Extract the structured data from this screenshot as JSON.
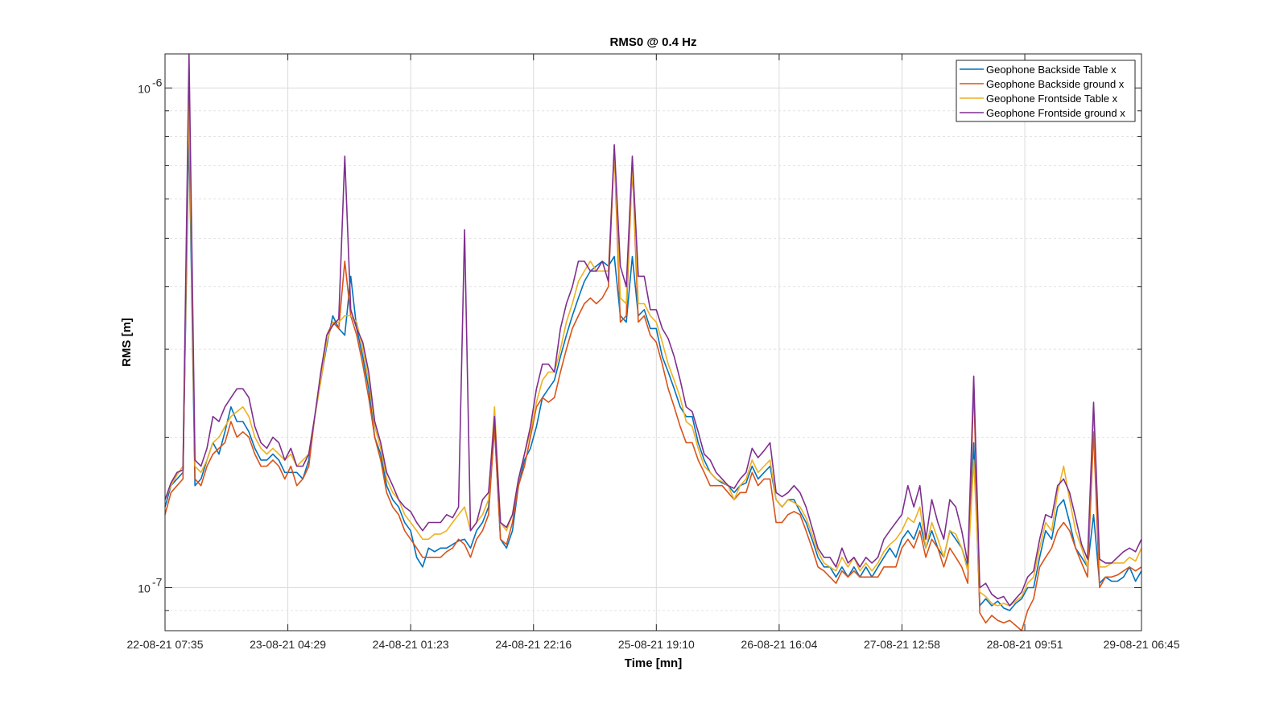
{
  "chart_data": {
    "type": "line",
    "title": "RMS0 @ 0.4 Hz",
    "xlabel": "Time [mn]",
    "ylabel": "RMS [m]",
    "yscale": "log",
    "ylim": [
      8.2e-08,
      1.17e-06
    ],
    "xlim": [
      0,
      159
    ],
    "grid": true,
    "legend_position": "top-right",
    "x_ticks": [
      {
        "x": 0,
        "label": "22-08-21 07:35"
      },
      {
        "x": 20,
        "label": "23-08-21 04:29"
      },
      {
        "x": 40,
        "label": "24-08-21 01:23"
      },
      {
        "x": 60,
        "label": "24-08-21 22:16"
      },
      {
        "x": 80,
        "label": "25-08-21 19:10"
      },
      {
        "x": 100,
        "label": "26-08-21 16:04"
      },
      {
        "x": 120,
        "label": "27-08-21 12:58"
      },
      {
        "x": 140,
        "label": "28-08-21 09:51"
      },
      {
        "x": 159,
        "label": "29-08-21 06:45"
      }
    ],
    "y_ticks": [
      {
        "y": 1e-07,
        "label": "10",
        "exp": "-7"
      },
      {
        "y": 1e-06,
        "label": "10",
        "exp": "-6"
      }
    ],
    "y_minor": [
      9e-08,
      2e-07,
      3e-07,
      4e-07,
      5e-07,
      6e-07,
      7e-07,
      8e-07,
      9e-07
    ],
    "series": [
      {
        "name": "Geophone Backside Table x",
        "color": "#0072BD",
        "values": [
          1.45e-07,
          1.6e-07,
          1.65e-07,
          1.7e-07,
          8.2e-07,
          1.6e-07,
          1.65e-07,
          1.8e-07,
          1.95e-07,
          1.85e-07,
          2.05e-07,
          2.3e-07,
          2.15e-07,
          2.15e-07,
          2.05e-07,
          1.9e-07,
          1.8e-07,
          1.8e-07,
          1.85e-07,
          1.8e-07,
          1.7e-07,
          1.7e-07,
          1.7e-07,
          1.65e-07,
          1.8e-07,
          2.2e-07,
          2.6e-07,
          3.05e-07,
          3.5e-07,
          3.3e-07,
          3.2e-07,
          4.2e-07,
          3.3e-07,
          2.9e-07,
          2.5e-07,
          2e-07,
          1.85e-07,
          1.6e-07,
          1.5e-07,
          1.45e-07,
          1.35e-07,
          1.3e-07,
          1.15e-07,
          1.1e-07,
          1.2e-07,
          1.18e-07,
          1.2e-07,
          1.2e-07,
          1.22e-07,
          1.24e-07,
          1.25e-07,
          1.2e-07,
          1.3e-07,
          1.35e-07,
          1.45e-07,
          2.1e-07,
          1.25e-07,
          1.2e-07,
          1.3e-07,
          1.6e-07,
          1.8e-07,
          1.9e-07,
          2.1e-07,
          2.4e-07,
          2.5e-07,
          2.6e-07,
          2.9e-07,
          3.2e-07,
          3.5e-07,
          3.8e-07,
          4.1e-07,
          4.3e-07,
          4.4e-07,
          4.5e-07,
          4.4e-07,
          4.6e-07,
          3.5e-07,
          3.4e-07,
          4.6e-07,
          3.5e-07,
          3.6e-07,
          3.3e-07,
          3.3e-07,
          2.9e-07,
          2.7e-07,
          2.5e-07,
          2.3e-07,
          2.2e-07,
          2.2e-07,
          1.95e-07,
          1.8e-07,
          1.7e-07,
          1.65e-07,
          1.62e-07,
          1.6e-07,
          1.55e-07,
          1.6e-07,
          1.62e-07,
          1.75e-07,
          1.65e-07,
          1.7e-07,
          1.75e-07,
          1.5e-07,
          1.45e-07,
          1.5e-07,
          1.5e-07,
          1.42e-07,
          1.35e-07,
          1.25e-07,
          1.15e-07,
          1.1e-07,
          1.1e-07,
          1.05e-07,
          1.1e-07,
          1.05e-07,
          1.1e-07,
          1.05e-07,
          1.1e-07,
          1.05e-07,
          1.1e-07,
          1.15e-07,
          1.2e-07,
          1.15e-07,
          1.25e-07,
          1.3e-07,
          1.25e-07,
          1.35e-07,
          1.2e-07,
          1.3e-07,
          1.2e-07,
          1.15e-07,
          1.3e-07,
          1.25e-07,
          1.2e-07,
          1.1e-07,
          1.95e-07,
          9.2e-08,
          9.5e-08,
          9.2e-08,
          9.4e-08,
          9.1e-08,
          9e-08,
          9.3e-08,
          9.5e-08,
          1e-07,
          1e-07,
          1.15e-07,
          1.3e-07,
          1.25e-07,
          1.45e-07,
          1.5e-07,
          1.35e-07,
          1.2e-07,
          1.15e-07,
          1.1e-07,
          1.4e-07,
          1.02e-07,
          1.05e-07,
          1.03e-07,
          1.03e-07,
          1.05e-07,
          1.1e-07,
          1.03e-07,
          1.08e-07
        ]
      },
      {
        "name": "Geophone Backside ground x",
        "color": "#D95319",
        "values": [
          1.4e-07,
          1.55e-07,
          1.6e-07,
          1.65e-07,
          9.5e-07,
          1.65e-07,
          1.6e-07,
          1.75e-07,
          1.85e-07,
          1.9e-07,
          1.95e-07,
          2.15e-07,
          2e-07,
          2.05e-07,
          2e-07,
          1.85e-07,
          1.75e-07,
          1.75e-07,
          1.8e-07,
          1.75e-07,
          1.65e-07,
          1.75e-07,
          1.6e-07,
          1.65e-07,
          1.75e-07,
          2.2e-07,
          2.6e-07,
          3.2e-07,
          3.4e-07,
          3.3e-07,
          4.5e-07,
          3.5e-07,
          3.2e-07,
          2.8e-07,
          2.4e-07,
          2e-07,
          1.8e-07,
          1.55e-07,
          1.45e-07,
          1.4e-07,
          1.3e-07,
          1.25e-07,
          1.2e-07,
          1.15e-07,
          1.15e-07,
          1.15e-07,
          1.15e-07,
          1.18e-07,
          1.2e-07,
          1.25e-07,
          1.22e-07,
          1.15e-07,
          1.25e-07,
          1.3e-07,
          1.4e-07,
          2.1e-07,
          1.25e-07,
          1.22e-07,
          1.35e-07,
          1.6e-07,
          1.75e-07,
          2e-07,
          2.3e-07,
          2.4e-07,
          2.35e-07,
          2.4e-07,
          2.7e-07,
          3e-07,
          3.3e-07,
          3.5e-07,
          3.7e-07,
          3.8e-07,
          3.7e-07,
          3.8e-07,
          4e-07,
          7.5e-07,
          3.4e-07,
          3.5e-07,
          7e-07,
          3.4e-07,
          3.5e-07,
          3.2e-07,
          3.1e-07,
          2.8e-07,
          2.5e-07,
          2.3e-07,
          2.1e-07,
          1.95e-07,
          1.95e-07,
          1.8e-07,
          1.7e-07,
          1.6e-07,
          1.6e-07,
          1.6e-07,
          1.55e-07,
          1.5e-07,
          1.55e-07,
          1.55e-07,
          1.7e-07,
          1.6e-07,
          1.65e-07,
          1.65e-07,
          1.35e-07,
          1.35e-07,
          1.4e-07,
          1.42e-07,
          1.4e-07,
          1.3e-07,
          1.2e-07,
          1.1e-07,
          1.08e-07,
          1.05e-07,
          1.02e-07,
          1.08e-07,
          1.05e-07,
          1.08e-07,
          1.05e-07,
          1.05e-07,
          1.05e-07,
          1.05e-07,
          1.1e-07,
          1.1e-07,
          1.1e-07,
          1.2e-07,
          1.25e-07,
          1.2e-07,
          1.3e-07,
          1.15e-07,
          1.25e-07,
          1.2e-07,
          1.1e-07,
          1.2e-07,
          1.15e-07,
          1.1e-07,
          1.02e-07,
          2.55e-07,
          8.9e-08,
          8.5e-08,
          8.8e-08,
          8.6e-08,
          8.5e-08,
          8.6e-08,
          8.4e-08,
          8.2e-08,
          9e-08,
          9.5e-08,
          1.1e-07,
          1.15e-07,
          1.2e-07,
          1.3e-07,
          1.35e-07,
          1.3e-07,
          1.2e-07,
          1.12e-07,
          1.05e-07,
          2.05e-07,
          1e-07,
          1.05e-07,
          1.05e-07,
          1.06e-07,
          1.08e-07,
          1.1e-07,
          1.08e-07,
          1.1e-07
        ]
      },
      {
        "name": "Geophone Frontside Table x",
        "color": "#EDB120",
        "values": [
          1.5e-07,
          1.6e-07,
          1.68e-07,
          1.75e-07,
          9.5e-07,
          1.75e-07,
          1.7e-07,
          1.8e-07,
          1.95e-07,
          2e-07,
          2.1e-07,
          2.2e-07,
          2.25e-07,
          2.3e-07,
          2.2e-07,
          2e-07,
          1.9e-07,
          1.85e-07,
          1.9e-07,
          1.85e-07,
          1.8e-07,
          1.85e-07,
          1.75e-07,
          1.8e-07,
          1.85e-07,
          2.2e-07,
          2.6e-07,
          3.1e-07,
          3.4e-07,
          3.4e-07,
          3.5e-07,
          3.5e-07,
          3.4e-07,
          3e-07,
          2.6e-07,
          2.1e-07,
          1.9e-07,
          1.65e-07,
          1.55e-07,
          1.5e-07,
          1.4e-07,
          1.35e-07,
          1.3e-07,
          1.25e-07,
          1.25e-07,
          1.28e-07,
          1.28e-07,
          1.3e-07,
          1.35e-07,
          1.4e-07,
          1.45e-07,
          1.3e-07,
          1.35e-07,
          1.4e-07,
          1.5e-07,
          2.3e-07,
          1.35e-07,
          1.3e-07,
          1.4e-07,
          1.65e-07,
          1.85e-07,
          2.05e-07,
          2.35e-07,
          2.6e-07,
          2.7e-07,
          2.7e-07,
          3e-07,
          3.4e-07,
          3.7e-07,
          4.1e-07,
          4.3e-07,
          4.5e-07,
          4.3e-07,
          4.3e-07,
          4.3e-07,
          7.5e-07,
          3.8e-07,
          3.7e-07,
          7e-07,
          3.7e-07,
          3.7e-07,
          3.5e-07,
          3.4e-07,
          3.1e-07,
          2.8e-07,
          2.6e-07,
          2.4e-07,
          2.15e-07,
          2.1e-07,
          1.9e-07,
          1.75e-07,
          1.7e-07,
          1.65e-07,
          1.63e-07,
          1.6e-07,
          1.5e-07,
          1.6e-07,
          1.65e-07,
          1.8e-07,
          1.7e-07,
          1.75e-07,
          1.8e-07,
          1.5e-07,
          1.45e-07,
          1.5e-07,
          1.48e-07,
          1.45e-07,
          1.38e-07,
          1.28e-07,
          1.18e-07,
          1.12e-07,
          1.1e-07,
          1.08e-07,
          1.15e-07,
          1.1e-07,
          1.15e-07,
          1.08e-07,
          1.12e-07,
          1.08e-07,
          1.12e-07,
          1.18e-07,
          1.22e-07,
          1.25e-07,
          1.3e-07,
          1.38e-07,
          1.35e-07,
          1.45e-07,
          1.2e-07,
          1.35e-07,
          1.25e-07,
          1.15e-07,
          1.3e-07,
          1.28e-07,
          1.2e-07,
          1.08e-07,
          1.8e-07,
          9.8e-08,
          9.6e-08,
          9.3e-08,
          9.2e-08,
          9.3e-08,
          9.2e-08,
          9.4e-08,
          9.6e-08,
          1.02e-07,
          1.05e-07,
          1.2e-07,
          1.35e-07,
          1.3e-07,
          1.55e-07,
          1.75e-07,
          1.5e-07,
          1.3e-07,
          1.2e-07,
          1.1e-07,
          2.3e-07,
          1.1e-07,
          1.1e-07,
          1.12e-07,
          1.12e-07,
          1.12e-07,
          1.15e-07,
          1.13e-07,
          1.2e-07
        ]
      },
      {
        "name": "Geophone Frontside ground x",
        "color": "#7E2F8E",
        "values": [
          1.5e-07,
          1.62e-07,
          1.7e-07,
          1.72e-07,
          1.17e-06,
          1.8e-07,
          1.75e-07,
          1.9e-07,
          2.2e-07,
          2.15e-07,
          2.3e-07,
          2.4e-07,
          2.5e-07,
          2.5e-07,
          2.4e-07,
          2.1e-07,
          1.95e-07,
          1.9e-07,
          2e-07,
          1.95e-07,
          1.8e-07,
          1.9e-07,
          1.75e-07,
          1.75e-07,
          1.85e-07,
          2.2e-07,
          2.7e-07,
          3.2e-07,
          3.35e-07,
          3.45e-07,
          7.3e-07,
          3.6e-07,
          3.3e-07,
          3.1e-07,
          2.7e-07,
          2.15e-07,
          1.95e-07,
          1.7e-07,
          1.6e-07,
          1.5e-07,
          1.45e-07,
          1.42e-07,
          1.35e-07,
          1.3e-07,
          1.35e-07,
          1.35e-07,
          1.35e-07,
          1.4e-07,
          1.38e-07,
          1.45e-07,
          5.2e-07,
          1.3e-07,
          1.35e-07,
          1.5e-07,
          1.55e-07,
          2.2e-07,
          1.35e-07,
          1.32e-07,
          1.4e-07,
          1.65e-07,
          1.85e-07,
          2.1e-07,
          2.5e-07,
          2.8e-07,
          2.8e-07,
          2.7e-07,
          3.3e-07,
          3.7e-07,
          4e-07,
          4.5e-07,
          4.5e-07,
          4.3e-07,
          4.3e-07,
          4.5e-07,
          4.1e-07,
          7.7e-07,
          4.4e-07,
          4e-07,
          7.3e-07,
          4.2e-07,
          4.2e-07,
          3.6e-07,
          3.6e-07,
          3.3e-07,
          3.15e-07,
          2.9e-07,
          2.6e-07,
          2.3e-07,
          2.25e-07,
          2.05e-07,
          1.85e-07,
          1.8e-07,
          1.7e-07,
          1.65e-07,
          1.6e-07,
          1.58e-07,
          1.65e-07,
          1.7e-07,
          1.9e-07,
          1.82e-07,
          1.88e-07,
          1.95e-07,
          1.55e-07,
          1.52e-07,
          1.55e-07,
          1.6e-07,
          1.55e-07,
          1.45e-07,
          1.32e-07,
          1.2e-07,
          1.15e-07,
          1.15e-07,
          1.1e-07,
          1.2e-07,
          1.12e-07,
          1.15e-07,
          1.1e-07,
          1.15e-07,
          1.12e-07,
          1.15e-07,
          1.25e-07,
          1.3e-07,
          1.35e-07,
          1.4e-07,
          1.6e-07,
          1.45e-07,
          1.6e-07,
          1.25e-07,
          1.5e-07,
          1.35e-07,
          1.25e-07,
          1.5e-07,
          1.45e-07,
          1.3e-07,
          1.12e-07,
          2.65e-07,
          1e-07,
          1.02e-07,
          9.7e-08,
          9.5e-08,
          9.6e-08,
          9.2e-08,
          9.5e-08,
          9.8e-08,
          1.05e-07,
          1.08e-07,
          1.25e-07,
          1.4e-07,
          1.38e-07,
          1.6e-07,
          1.65e-07,
          1.55e-07,
          1.38e-07,
          1.22e-07,
          1.14e-07,
          2.35e-07,
          1.14e-07,
          1.12e-07,
          1.12e-07,
          1.15e-07,
          1.18e-07,
          1.2e-07,
          1.18e-07,
          1.25e-07
        ]
      }
    ]
  }
}
